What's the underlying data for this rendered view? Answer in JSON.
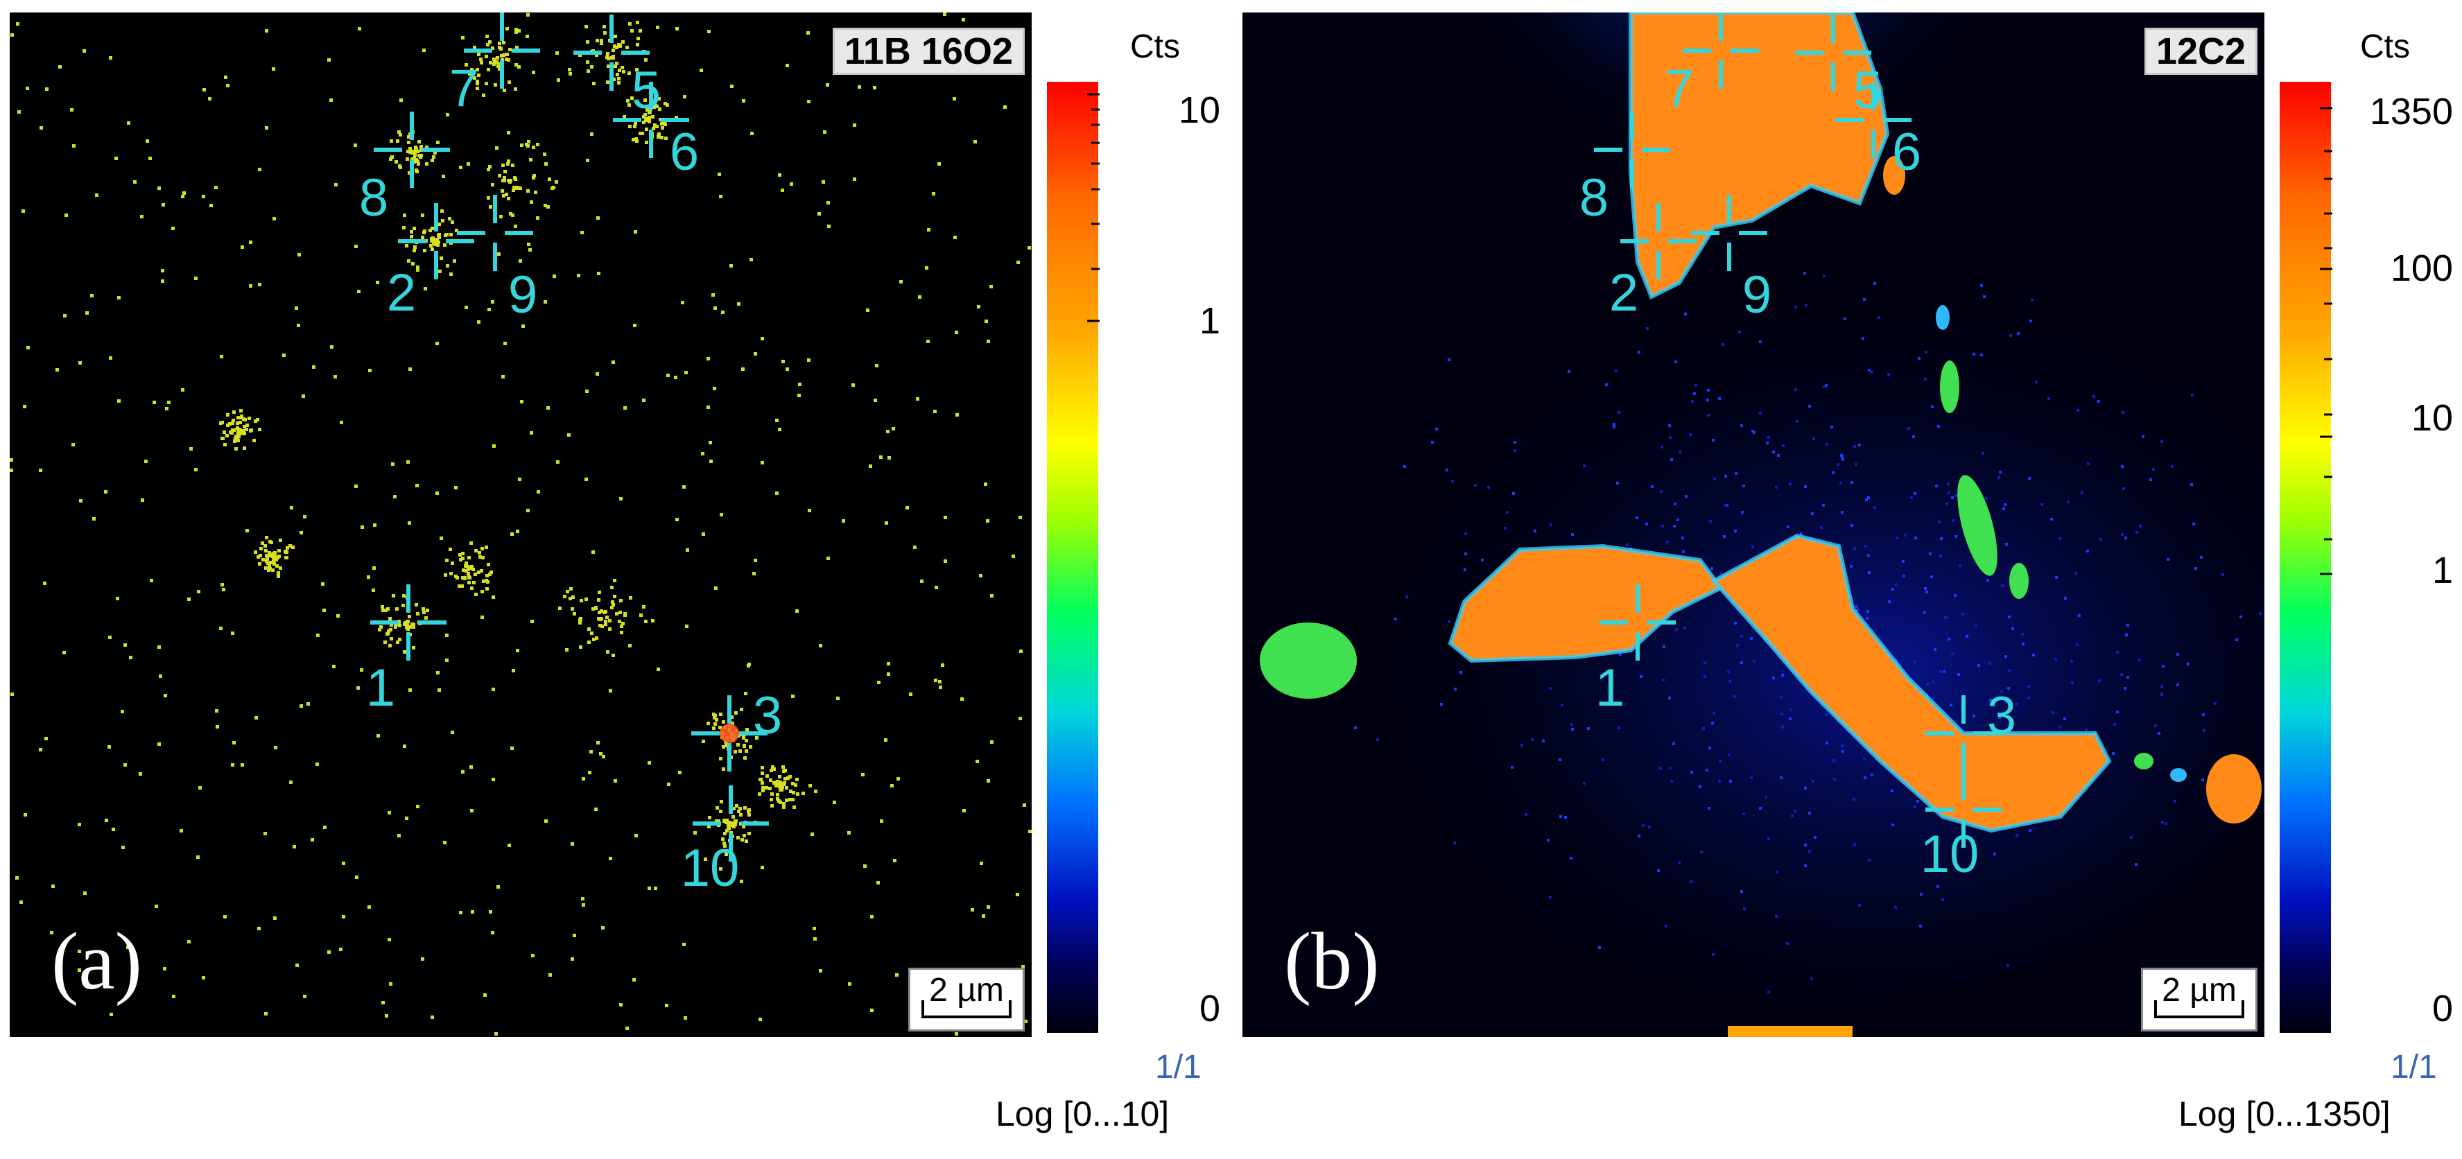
{
  "panel_a": {
    "letter": "(a)",
    "ion": "11B 16O2",
    "scale": "2 µm",
    "colorbar": {
      "cts": "Cts",
      "ticks": [
        "10",
        "1",
        "0"
      ],
      "fraction": "1/1",
      "range": "Log [0...10]"
    },
    "markers": [
      "7",
      "5",
      "6",
      "8",
      "2",
      "9",
      "1",
      "3",
      "10"
    ]
  },
  "panel_b": {
    "letter": "(b)",
    "ion": "12C2",
    "scale": "2 µm",
    "colorbar": {
      "cts": "Cts",
      "ticks": [
        "1350",
        "100",
        "10",
        "1",
        "0"
      ],
      "fraction": "1/1",
      "range": "Log [0...1350]"
    },
    "markers": [
      "7",
      "5",
      "6",
      "8",
      "2",
      "9",
      "1",
      "3",
      "10"
    ]
  },
  "colors": {
    "marker": "#33d6dc",
    "speckle": "#d6e020",
    "high": "#ff8a18",
    "mid": "#40e050",
    "low": "#0a1ab0"
  }
}
